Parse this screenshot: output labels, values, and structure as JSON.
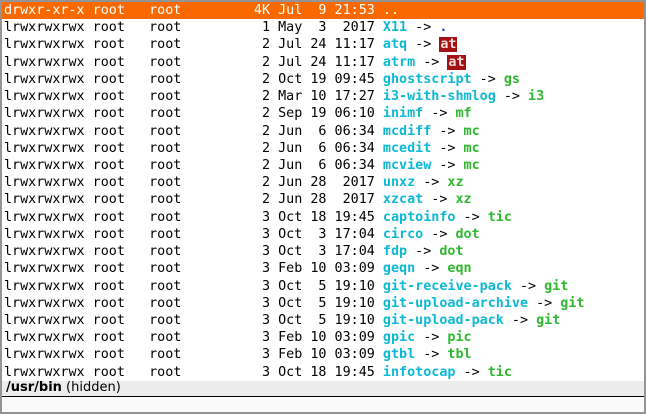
{
  "colors": {
    "selection_bg": "#f96900",
    "selection_fg": "#ffffff",
    "text": "#000000",
    "symlink_name": "#0cb9d4",
    "target_executable": "#2eb82e",
    "target_directory": "#2244cc",
    "target_setuid_bg": "#a31212",
    "target_setuid_fg": "#f2dcdc",
    "statusbar_bg": "#ececec"
  },
  "listing": {
    "arrow": "->",
    "rows": [
      {
        "perms": "drwxr-xr-x",
        "owner": "root",
        "group": "root",
        "size": "4K",
        "date": "Jul  9 21:53",
        "name": "..",
        "target": null,
        "target_type": null,
        "selected": true
      },
      {
        "perms": "lrwxrwxrwx",
        "owner": "root",
        "group": "root",
        "size": "1",
        "date": "May  3  2017",
        "name": "X11",
        "target": ".",
        "target_type": "directory",
        "selected": false
      },
      {
        "perms": "lrwxrwxrwx",
        "owner": "root",
        "group": "root",
        "size": "2",
        "date": "Jul 24 11:17",
        "name": "atq",
        "target": "at",
        "target_type": "setuid",
        "selected": false
      },
      {
        "perms": "lrwxrwxrwx",
        "owner": "root",
        "group": "root",
        "size": "2",
        "date": "Jul 24 11:17",
        "name": "atrm",
        "target": "at",
        "target_type": "setuid",
        "selected": false
      },
      {
        "perms": "lrwxrwxrwx",
        "owner": "root",
        "group": "root",
        "size": "2",
        "date": "Oct 19 09:45",
        "name": "ghostscript",
        "target": "gs",
        "target_type": "executable",
        "selected": false
      },
      {
        "perms": "lrwxrwxrwx",
        "owner": "root",
        "group": "root",
        "size": "2",
        "date": "Mar 10 17:27",
        "name": "i3-with-shmlog",
        "target": "i3",
        "target_type": "executable",
        "selected": false
      },
      {
        "perms": "lrwxrwxrwx",
        "owner": "root",
        "group": "root",
        "size": "2",
        "date": "Sep 19 06:10",
        "name": "inimf",
        "target": "mf",
        "target_type": "executable",
        "selected": false
      },
      {
        "perms": "lrwxrwxrwx",
        "owner": "root",
        "group": "root",
        "size": "2",
        "date": "Jun  6 06:34",
        "name": "mcdiff",
        "target": "mc",
        "target_type": "executable",
        "selected": false
      },
      {
        "perms": "lrwxrwxrwx",
        "owner": "root",
        "group": "root",
        "size": "2",
        "date": "Jun  6 06:34",
        "name": "mcedit",
        "target": "mc",
        "target_type": "executable",
        "selected": false
      },
      {
        "perms": "lrwxrwxrwx",
        "owner": "root",
        "group": "root",
        "size": "2",
        "date": "Jun  6 06:34",
        "name": "mcview",
        "target": "mc",
        "target_type": "executable",
        "selected": false
      },
      {
        "perms": "lrwxrwxrwx",
        "owner": "root",
        "group": "root",
        "size": "2",
        "date": "Jun 28  2017",
        "name": "unxz",
        "target": "xz",
        "target_type": "executable",
        "selected": false
      },
      {
        "perms": "lrwxrwxrwx",
        "owner": "root",
        "group": "root",
        "size": "2",
        "date": "Jun 28  2017",
        "name": "xzcat",
        "target": "xz",
        "target_type": "executable",
        "selected": false
      },
      {
        "perms": "lrwxrwxrwx",
        "owner": "root",
        "group": "root",
        "size": "3",
        "date": "Oct 18 19:45",
        "name": "captoinfo",
        "target": "tic",
        "target_type": "executable",
        "selected": false
      },
      {
        "perms": "lrwxrwxrwx",
        "owner": "root",
        "group": "root",
        "size": "3",
        "date": "Oct  3 17:04",
        "name": "circo",
        "target": "dot",
        "target_type": "executable",
        "selected": false
      },
      {
        "perms": "lrwxrwxrwx",
        "owner": "root",
        "group": "root",
        "size": "3",
        "date": "Oct  3 17:04",
        "name": "fdp",
        "target": "dot",
        "target_type": "executable",
        "selected": false
      },
      {
        "perms": "lrwxrwxrwx",
        "owner": "root",
        "group": "root",
        "size": "3",
        "date": "Feb 10 03:09",
        "name": "geqn",
        "target": "eqn",
        "target_type": "executable",
        "selected": false
      },
      {
        "perms": "lrwxrwxrwx",
        "owner": "root",
        "group": "root",
        "size": "3",
        "date": "Oct  5 19:10",
        "name": "git-receive-pack",
        "target": "git",
        "target_type": "executable",
        "selected": false
      },
      {
        "perms": "lrwxrwxrwx",
        "owner": "root",
        "group": "root",
        "size": "3",
        "date": "Oct  5 19:10",
        "name": "git-upload-archive",
        "target": "git",
        "target_type": "executable",
        "selected": false
      },
      {
        "perms": "lrwxrwxrwx",
        "owner": "root",
        "group": "root",
        "size": "3",
        "date": "Oct  5 19:10",
        "name": "git-upload-pack",
        "target": "git",
        "target_type": "executable",
        "selected": false
      },
      {
        "perms": "lrwxrwxrwx",
        "owner": "root",
        "group": "root",
        "size": "3",
        "date": "Feb 10 03:09",
        "name": "gpic",
        "target": "pic",
        "target_type": "executable",
        "selected": false
      },
      {
        "perms": "lrwxrwxrwx",
        "owner": "root",
        "group": "root",
        "size": "3",
        "date": "Feb 10 03:09",
        "name": "gtbl",
        "target": "tbl",
        "target_type": "executable",
        "selected": false
      },
      {
        "perms": "lrwxrwxrwx",
        "owner": "root",
        "group": "root",
        "size": "3",
        "date": "Oct 18 19:45",
        "name": "infotocap",
        "target": "tic",
        "target_type": "executable",
        "selected": false
      }
    ]
  },
  "statusbar": {
    "path": "/usr/bin",
    "note": " (hidden)"
  }
}
